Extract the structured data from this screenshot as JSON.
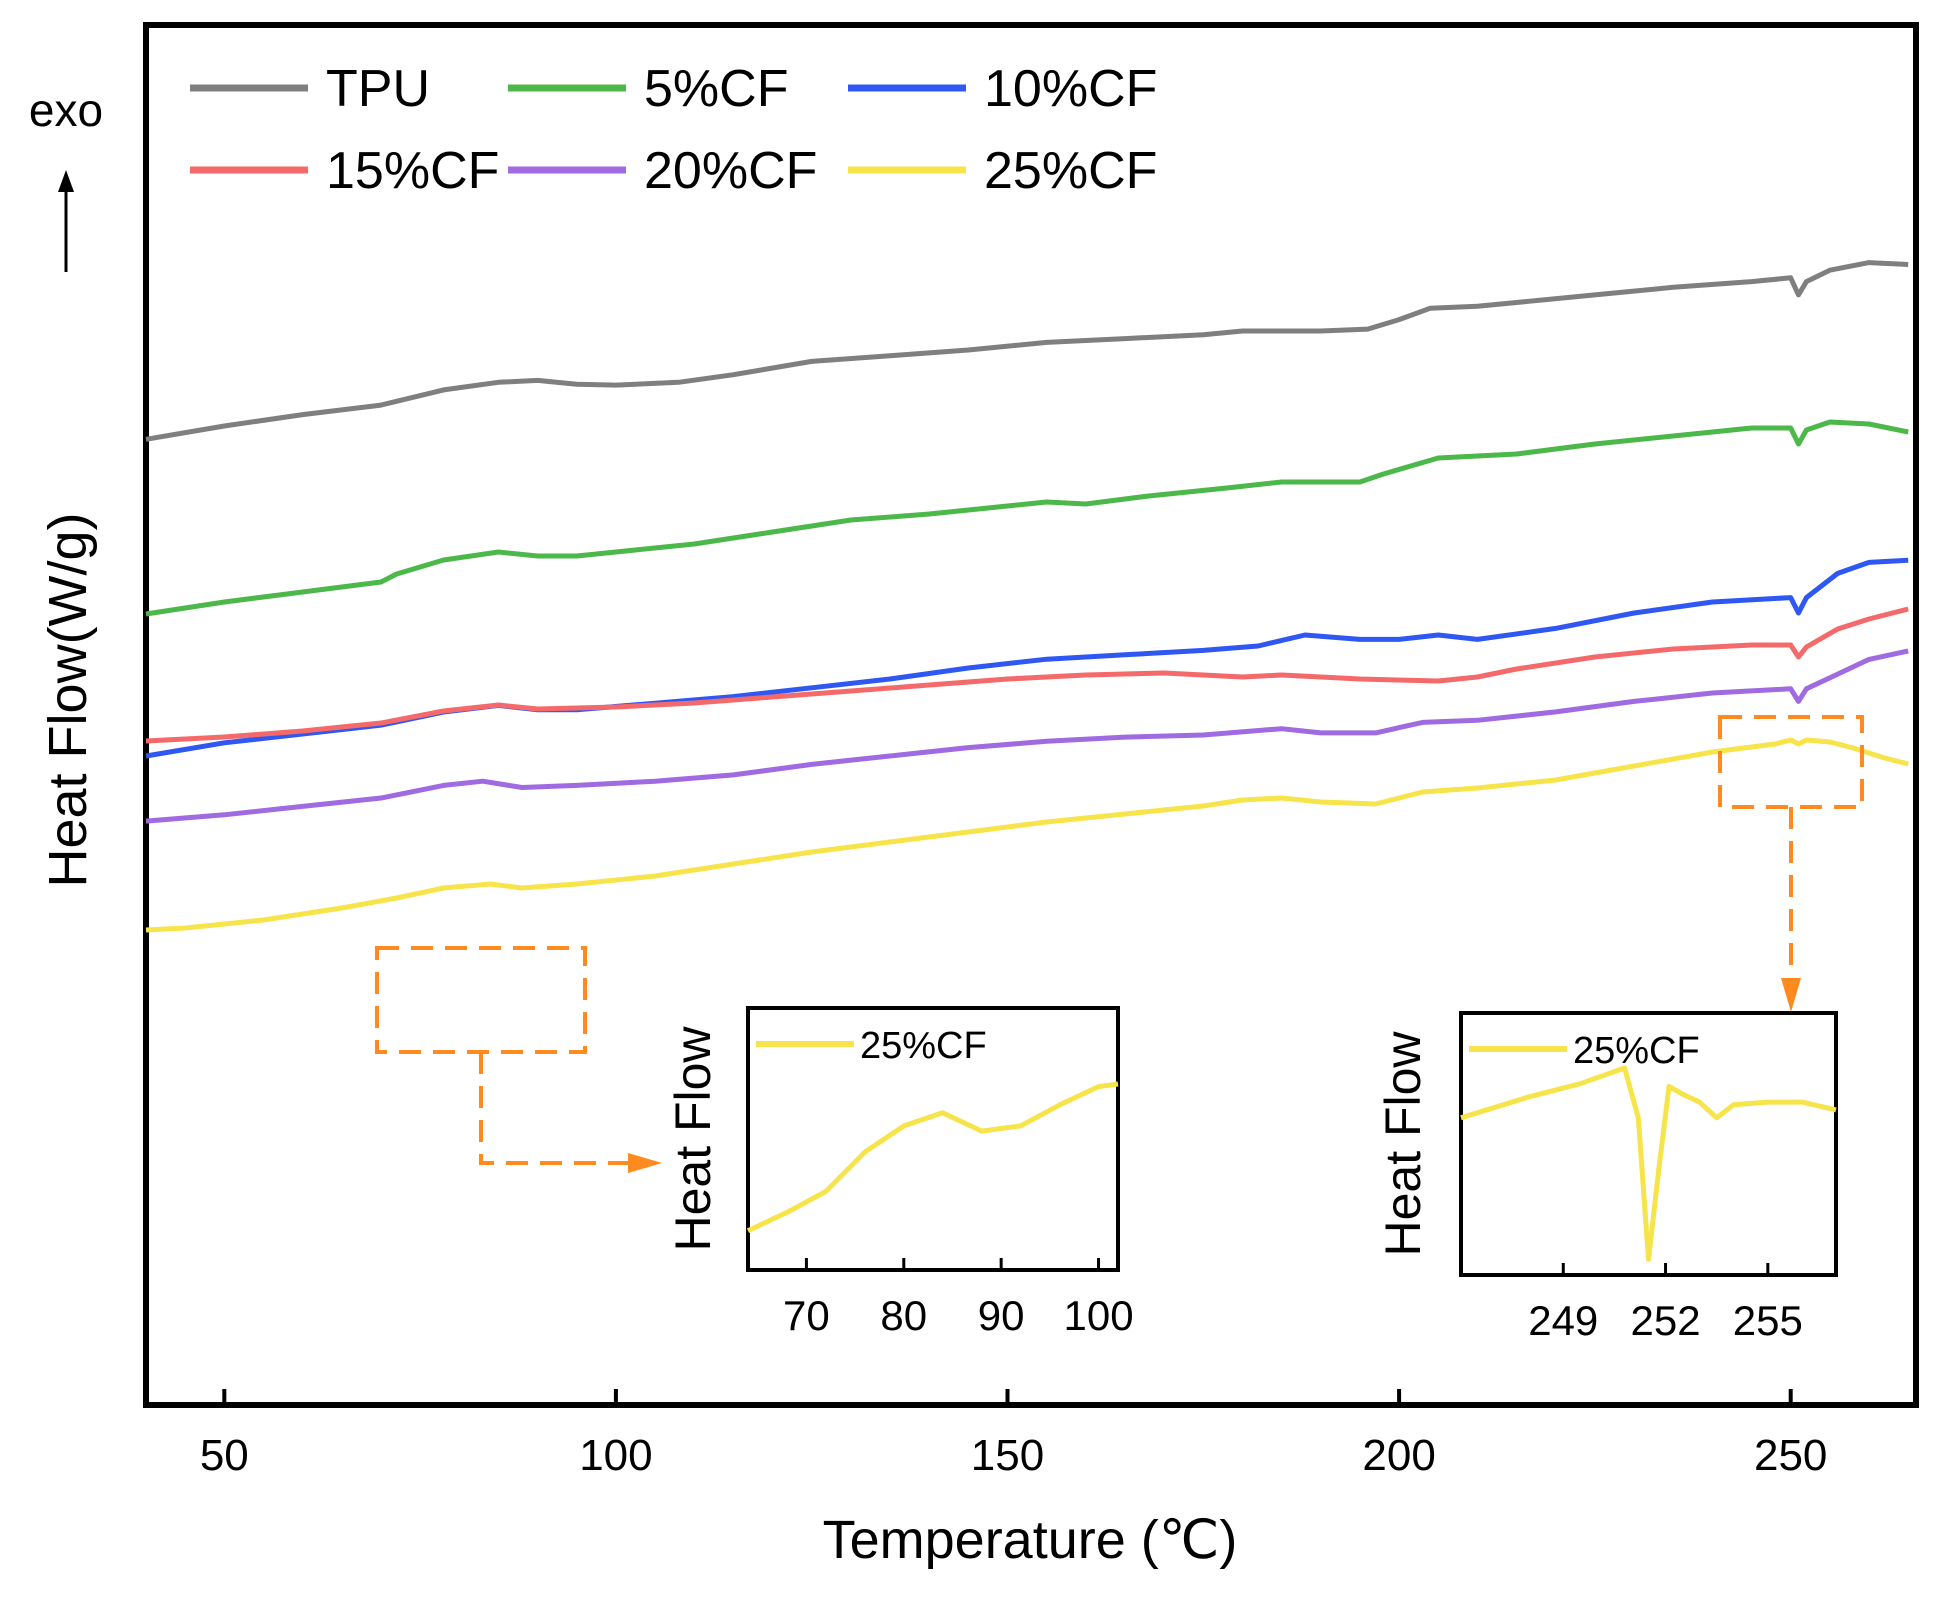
{
  "chart_data": {
    "type": "line",
    "title": "",
    "xlabel": "Temperature (℃)",
    "ylabel": "Heat Flow(W/g)",
    "annotation": "exo",
    "xlim": [
      40,
      266
    ],
    "xticks": [
      50,
      100,
      150,
      200,
      250
    ],
    "y_offset_note": "curves vertically offset; y axis has no numeric ticks",
    "colors": {
      "TPU": "#7f7f7f",
      "5%CF": "#4cb84a",
      "10%CF": "#2f57f2",
      "15%CF": "#f46a6a",
      "20%CF": "#a06ae0",
      "25%CF": "#f7e44a",
      "highlight": "#ff8a1f"
    },
    "series": [
      {
        "name": "TPU",
        "points": [
          [
            40,
            -0.7
          ],
          [
            50,
            0.0
          ],
          [
            60,
            0.6
          ],
          [
            70,
            1.1
          ],
          [
            78,
            1.9
          ],
          [
            85,
            2.3
          ],
          [
            90,
            2.4
          ],
          [
            95,
            2.2
          ],
          [
            100,
            2.15
          ],
          [
            108,
            2.3
          ],
          [
            115,
            2.7
          ],
          [
            125,
            3.4
          ],
          [
            135,
            3.7
          ],
          [
            145,
            4.0
          ],
          [
            155,
            4.4
          ],
          [
            165,
            4.6
          ],
          [
            175,
            4.8
          ],
          [
            180,
            5.0
          ],
          [
            190,
            5.0
          ],
          [
            196,
            5.1
          ],
          [
            200,
            5.6
          ],
          [
            204,
            6.2
          ],
          [
            210,
            6.3
          ],
          [
            215,
            6.5
          ],
          [
            225,
            6.9
          ],
          [
            235,
            7.3
          ],
          [
            245,
            7.6
          ],
          [
            250,
            7.8
          ],
          [
            251,
            6.9
          ],
          [
            252,
            7.6
          ],
          [
            255,
            8.2
          ],
          [
            260,
            8.6
          ],
          [
            265,
            8.5
          ]
        ]
      },
      {
        "name": "5%CF",
        "points": [
          [
            40,
            -2.0
          ],
          [
            50,
            -1.4
          ],
          [
            60,
            -0.9
          ],
          [
            70,
            -0.4
          ],
          [
            72,
            0.0
          ],
          [
            78,
            0.7
          ],
          [
            85,
            1.1
          ],
          [
            90,
            0.9
          ],
          [
            95,
            0.9
          ],
          [
            100,
            1.1
          ],
          [
            110,
            1.5
          ],
          [
            120,
            2.1
          ],
          [
            130,
            2.7
          ],
          [
            140,
            3.0
          ],
          [
            150,
            3.4
          ],
          [
            155,
            3.6
          ],
          [
            160,
            3.5
          ],
          [
            168,
            3.9
          ],
          [
            178,
            4.3
          ],
          [
            185,
            4.6
          ],
          [
            195,
            4.6
          ],
          [
            198,
            5.0
          ],
          [
            205,
            5.8
          ],
          [
            215,
            6.0
          ],
          [
            225,
            6.5
          ],
          [
            235,
            6.9
          ],
          [
            245,
            7.3
          ],
          [
            250,
            7.3
          ],
          [
            251,
            6.5
          ],
          [
            252,
            7.2
          ],
          [
            255,
            7.6
          ],
          [
            260,
            7.5
          ],
          [
            265,
            7.1
          ]
        ]
      },
      {
        "name": "10%CF",
        "points": [
          [
            40,
            -4.0
          ],
          [
            50,
            -3.4
          ],
          [
            60,
            -3.0
          ],
          [
            70,
            -2.6
          ],
          [
            78,
            -2.0
          ],
          [
            85,
            -1.7
          ],
          [
            90,
            -1.9
          ],
          [
            95,
            -1.9
          ],
          [
            105,
            -1.6
          ],
          [
            115,
            -1.3
          ],
          [
            125,
            -0.9
          ],
          [
            135,
            -0.5
          ],
          [
            145,
            0.0
          ],
          [
            155,
            0.4
          ],
          [
            165,
            0.6
          ],
          [
            175,
            0.8
          ],
          [
            182,
            1.0
          ],
          [
            188,
            1.5
          ],
          [
            195,
            1.3
          ],
          [
            200,
            1.3
          ],
          [
            205,
            1.5
          ],
          [
            210,
            1.3
          ],
          [
            220,
            1.8
          ],
          [
            230,
            2.5
          ],
          [
            240,
            3.0
          ],
          [
            250,
            3.2
          ],
          [
            251,
            2.5
          ],
          [
            252,
            3.2
          ],
          [
            256,
            4.3
          ],
          [
            260,
            4.8
          ],
          [
            265,
            4.9
          ]
        ]
      },
      {
        "name": "15%CF",
        "points": [
          [
            40,
            -4.8
          ],
          [
            50,
            -4.6
          ],
          [
            60,
            -4.3
          ],
          [
            70,
            -3.9
          ],
          [
            78,
            -3.3
          ],
          [
            85,
            -3.0
          ],
          [
            90,
            -3.2
          ],
          [
            100,
            -3.1
          ],
          [
            110,
            -2.9
          ],
          [
            120,
            -2.6
          ],
          [
            130,
            -2.3
          ],
          [
            140,
            -2.0
          ],
          [
            150,
            -1.7
          ],
          [
            160,
            -1.5
          ],
          [
            170,
            -1.4
          ],
          [
            180,
            -1.6
          ],
          [
            185,
            -1.5
          ],
          [
            195,
            -1.7
          ],
          [
            205,
            -1.8
          ],
          [
            210,
            -1.6
          ],
          [
            215,
            -1.2
          ],
          [
            225,
            -0.6
          ],
          [
            235,
            -0.2
          ],
          [
            245,
            0.0
          ],
          [
            250,
            0.0
          ],
          [
            251,
            -0.6
          ],
          [
            252,
            -0.1
          ],
          [
            256,
            0.8
          ],
          [
            260,
            1.3
          ],
          [
            265,
            1.8
          ]
        ]
      },
      {
        "name": "20%CF",
        "points": [
          [
            40,
            -7.1
          ],
          [
            50,
            -6.8
          ],
          [
            60,
            -6.4
          ],
          [
            70,
            -6.0
          ],
          [
            78,
            -5.4
          ],
          [
            83,
            -5.2
          ],
          [
            88,
            -5.5
          ],
          [
            95,
            -5.4
          ],
          [
            105,
            -5.2
          ],
          [
            115,
            -4.9
          ],
          [
            125,
            -4.4
          ],
          [
            135,
            -4.0
          ],
          [
            145,
            -3.6
          ],
          [
            155,
            -3.3
          ],
          [
            165,
            -3.1
          ],
          [
            175,
            -3.0
          ],
          [
            185,
            -2.7
          ],
          [
            190,
            -2.9
          ],
          [
            197,
            -2.9
          ],
          [
            203,
            -2.4
          ],
          [
            210,
            -2.3
          ],
          [
            220,
            -1.9
          ],
          [
            230,
            -1.4
          ],
          [
            240,
            -1.0
          ],
          [
            250,
            -0.8
          ],
          [
            251,
            -1.4
          ],
          [
            252,
            -0.8
          ],
          [
            256,
            -0.1
          ],
          [
            260,
            0.6
          ],
          [
            265,
            1.0
          ]
        ]
      },
      {
        "name": "25%CF",
        "points": [
          [
            40,
            -10.5
          ],
          [
            45,
            -10.4
          ],
          [
            55,
            -10.0
          ],
          [
            65,
            -9.4
          ],
          [
            72,
            -8.9
          ],
          [
            78,
            -8.4
          ],
          [
            84,
            -8.2
          ],
          [
            88,
            -8.4
          ],
          [
            95,
            -8.2
          ],
          [
            105,
            -7.8
          ],
          [
            115,
            -7.2
          ],
          [
            125,
            -6.6
          ],
          [
            135,
            -6.1
          ],
          [
            145,
            -5.6
          ],
          [
            155,
            -5.1
          ],
          [
            165,
            -4.7
          ],
          [
            175,
            -4.3
          ],
          [
            180,
            -4.0
          ],
          [
            185,
            -3.9
          ],
          [
            190,
            -4.1
          ],
          [
            197,
            -4.2
          ],
          [
            203,
            -3.6
          ],
          [
            210,
            -3.4
          ],
          [
            220,
            -3.0
          ],
          [
            230,
            -2.3
          ],
          [
            240,
            -1.6
          ],
          [
            248,
            -1.2
          ],
          [
            250,
            -1.0
          ],
          [
            251,
            -1.2
          ],
          [
            252,
            -1.0
          ],
          [
            255,
            -1.1
          ],
          [
            258,
            -1.4
          ],
          [
            262,
            -1.9
          ],
          [
            265,
            -2.2
          ]
        ]
      }
    ],
    "legend": [
      "TPU",
      "5%CF",
      "10%CF",
      "15%CF",
      "20%CF",
      "25%CF"
    ],
    "insets": [
      {
        "ylabel": "Heat Flow",
        "legend": "25%CF",
        "series_name": "25%CF",
        "xlim": [
          64,
          102
        ],
        "xticks": [
          70,
          80,
          90,
          100
        ],
        "ylim": [
          0,
          10
        ],
        "points": [
          [
            64,
            1.5
          ],
          [
            68,
            2.2
          ],
          [
            72,
            3.0
          ],
          [
            76,
            4.5
          ],
          [
            80,
            5.5
          ],
          [
            84,
            6.0
          ],
          [
            88,
            5.3
          ],
          [
            92,
            5.5
          ],
          [
            96,
            6.3
          ],
          [
            100,
            7.0
          ],
          [
            102,
            7.1
          ]
        ]
      },
      {
        "ylabel": "Heat Flow",
        "legend": "25%CF",
        "series_name": "25%CF",
        "xlim": [
          246,
          257
        ],
        "xticks": [
          249,
          252,
          255
        ],
        "ylim": [
          0,
          10
        ],
        "points": [
          [
            246,
            6.0
          ],
          [
            248,
            6.8
          ],
          [
            249.5,
            7.3
          ],
          [
            250.8,
            7.9
          ],
          [
            251.2,
            6.0
          ],
          [
            251.5,
            0.6
          ],
          [
            251.8,
            4.0
          ],
          [
            252.1,
            7.2
          ],
          [
            252.5,
            6.9
          ],
          [
            253,
            6.6
          ],
          [
            253.5,
            6.0
          ],
          [
            254,
            6.5
          ],
          [
            255,
            6.6
          ],
          [
            256,
            6.6
          ],
          [
            257,
            6.3
          ]
        ]
      }
    ]
  }
}
